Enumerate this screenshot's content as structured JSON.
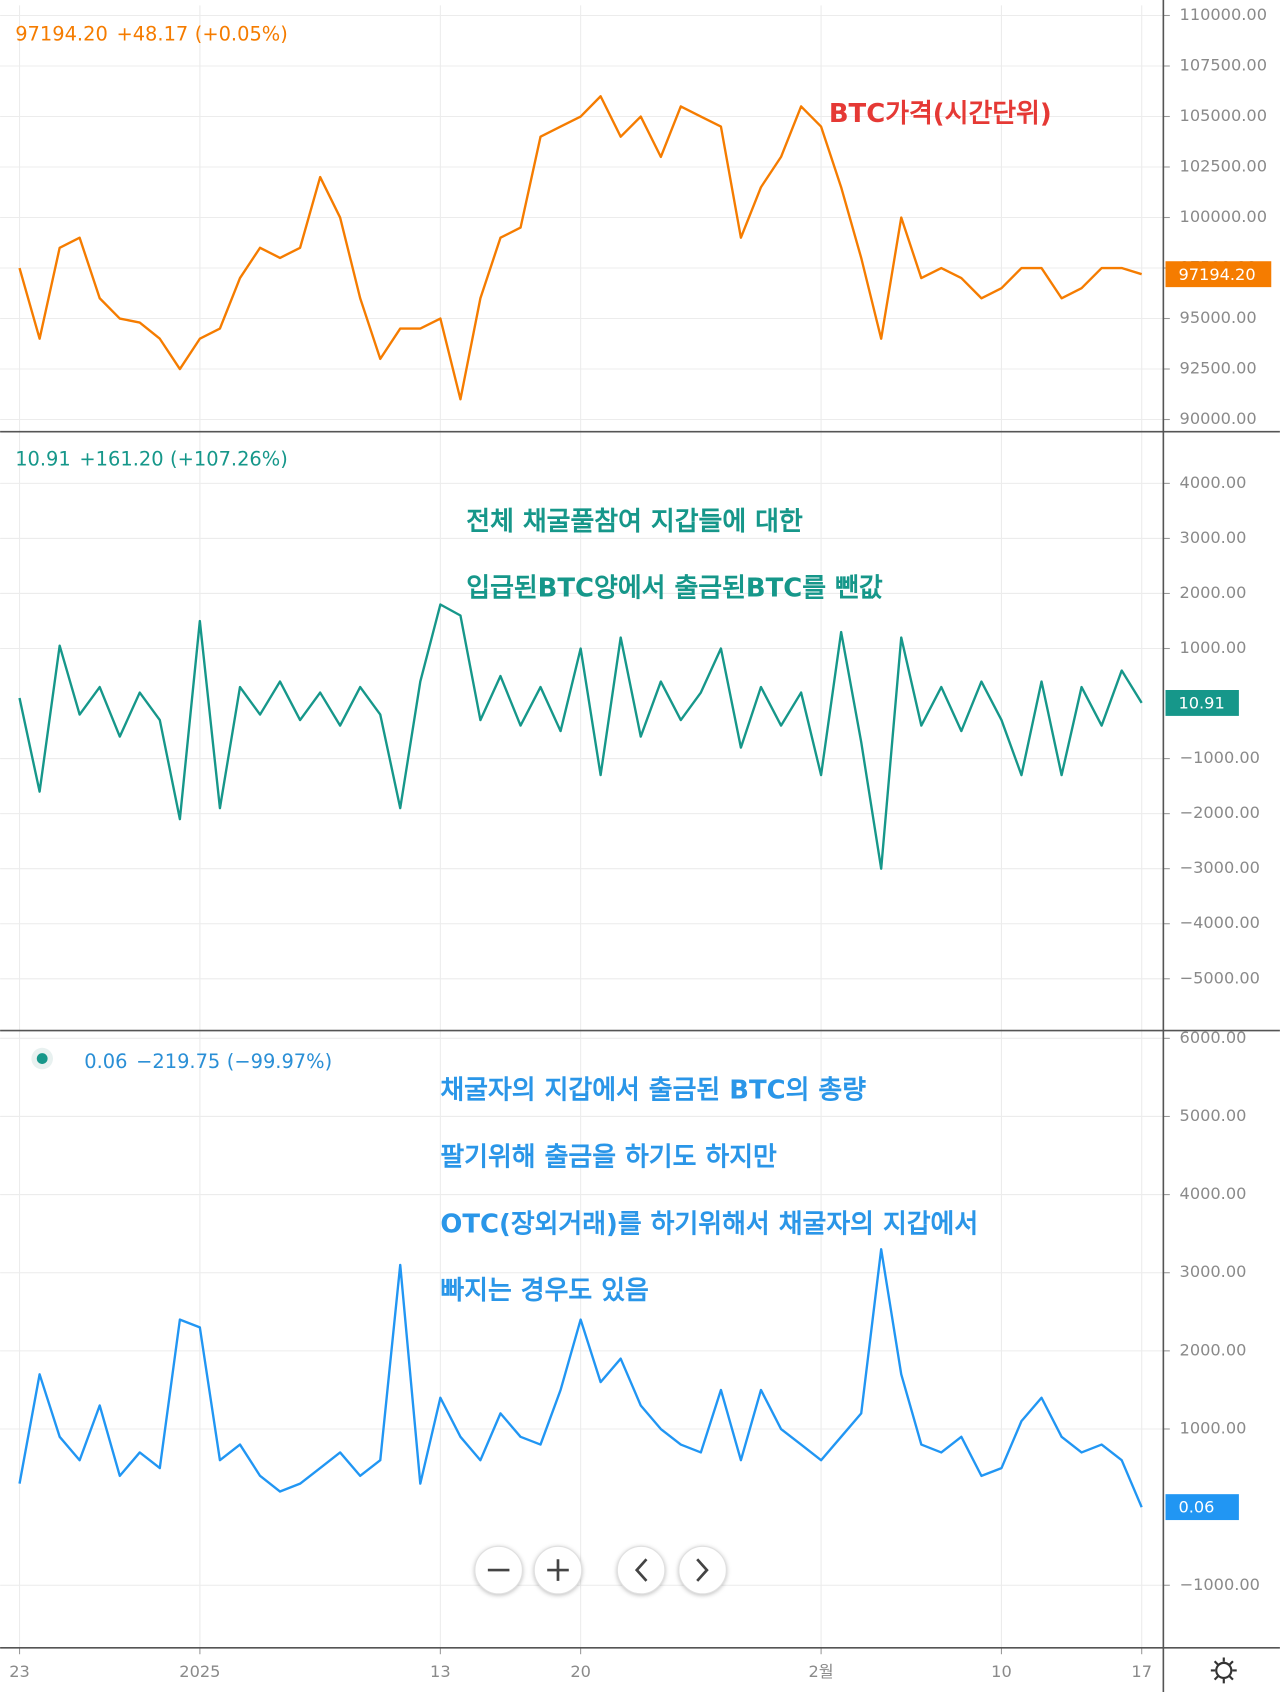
{
  "chart_data": [
    {
      "type": "line",
      "color": "#f57c00",
      "header": {
        "value": "97194.20",
        "change": "+48.17",
        "percent": "(+0.05%)"
      },
      "annotations": [
        "BTC가격(시간단위)"
      ],
      "x": [
        0,
        1,
        2,
        3,
        4,
        5,
        6,
        7,
        8,
        9,
        10,
        11,
        12,
        13,
        14,
        15,
        16,
        17,
        18,
        19,
        20,
        21,
        22,
        23,
        24,
        25,
        26,
        27,
        28,
        29,
        30,
        31,
        32,
        33,
        34,
        35,
        36,
        37,
        38,
        39,
        40,
        41,
        42,
        43,
        44,
        45,
        46,
        47,
        48,
        49,
        50,
        51,
        52,
        53,
        54,
        55,
        56
      ],
      "values": [
        97500,
        94000,
        98500,
        99000,
        96000,
        95000,
        94800,
        94000,
        92500,
        94000,
        94500,
        97000,
        98500,
        98000,
        98500,
        102000,
        100000,
        96000,
        93000,
        94500,
        94500,
        95000,
        91000,
        96000,
        99000,
        99500,
        104000,
        104500,
        105000,
        106000,
        104000,
        105000,
        103000,
        105500,
        105000,
        104500,
        99000,
        101500,
        103000,
        105500,
        104500,
        101500,
        98000,
        94000,
        100000,
        97000,
        97500,
        97000,
        96000,
        96500,
        97500,
        97500,
        96000,
        96500,
        97500,
        97500,
        97194.2
      ],
      "xlim": [
        -0.97,
        57.08
      ],
      "ylim": [
        89400,
        110500
      ],
      "yticks": [
        {
          "value": 90000,
          "label": "90000.00"
        },
        {
          "value": 92500,
          "label": "92500.00"
        },
        {
          "value": 95000,
          "label": "95000.00"
        },
        {
          "value": 97500,
          "label": "97500.00"
        },
        {
          "value": 100000,
          "label": "100000.00"
        },
        {
          "value": 102500,
          "label": "102500.00"
        },
        {
          "value": 105000,
          "label": "105000.00"
        },
        {
          "value": 107500,
          "label": "107500.00"
        },
        {
          "value": 110000,
          "label": "110000.00"
        }
      ]
    },
    {
      "type": "line",
      "color": "#16978a",
      "header": {
        "value": "10.91",
        "change": "+161.20",
        "percent": "(+107.26%)"
      },
      "annotations": [
        "전체 채굴풀참여 지갑들에 대한",
        "입급된BTC양에서 출금된BTC를 뺀값"
      ],
      "x": [
        0,
        1,
        2,
        3,
        4,
        5,
        6,
        7,
        8,
        9,
        10,
        11,
        12,
        13,
        14,
        15,
        16,
        17,
        18,
        19,
        20,
        21,
        22,
        23,
        24,
        25,
        26,
        27,
        28,
        29,
        30,
        31,
        32,
        33,
        34,
        35,
        36,
        37,
        38,
        39,
        40,
        41,
        42,
        43,
        44,
        45,
        46,
        47,
        48,
        49,
        50,
        51,
        52,
        53,
        54,
        55,
        56
      ],
      "values": [
        100,
        -1600,
        1050,
        -200,
        300,
        -600,
        200,
        -300,
        -2100,
        1500,
        -1900,
        300,
        -200,
        400,
        -300,
        200,
        -400,
        300,
        -200,
        -1900,
        400,
        1800,
        1600,
        -300,
        500,
        -400,
        300,
        -500,
        1000,
        -1300,
        1200,
        -600,
        400,
        -300,
        200,
        1000,
        -800,
        300,
        -400,
        200,
        -1300,
        1300,
        -700,
        -3000,
        1200,
        -400,
        300,
        -500,
        400,
        -300,
        -1300,
        400,
        -1300,
        300,
        -400,
        600,
        10.91
      ],
      "xlim": [
        -0.97,
        57.08
      ],
      "ylim": [
        -5940,
        4940
      ],
      "yticks": [
        {
          "value": -5000,
          "label": "−5000.00"
        },
        {
          "value": -4000,
          "label": "−4000.00"
        },
        {
          "value": -3000,
          "label": "−3000.00"
        },
        {
          "value": -2000,
          "label": "−2000.00"
        },
        {
          "value": -1000,
          "label": "−1000.00"
        },
        {
          "value": 1000,
          "label": "1000.00"
        },
        {
          "value": 2000,
          "label": "2000.00"
        },
        {
          "value": 3000,
          "label": "3000.00"
        },
        {
          "value": 4000,
          "label": "4000.00"
        }
      ]
    },
    {
      "type": "line",
      "color": "#2196f3",
      "header": {
        "value": "0.06",
        "change": "−219.75",
        "percent": "(−99.97%)"
      },
      "annotations": [
        "채굴자의 지갑에서 출금된 BTC의 총량",
        "팔기위해 출금을 하기도 하지만",
        "OTC(장외거래)를 하기위해서 채굴자의 지갑에서",
        "빠지는 경우도 있음"
      ],
      "x": [
        0,
        1,
        2,
        3,
        4,
        5,
        6,
        7,
        8,
        9,
        10,
        11,
        12,
        13,
        14,
        15,
        16,
        17,
        18,
        19,
        20,
        21,
        22,
        23,
        24,
        25,
        26,
        27,
        28,
        29,
        30,
        31,
        32,
        33,
        34,
        35,
        36,
        37,
        38,
        39,
        40,
        41,
        42,
        43,
        44,
        45,
        46,
        47,
        48,
        49,
        50,
        51,
        52,
        53,
        54,
        55,
        56
      ],
      "values": [
        300,
        1700,
        900,
        600,
        1300,
        400,
        700,
        500,
        2400,
        2300,
        600,
        800,
        400,
        200,
        300,
        500,
        700,
        400,
        600,
        3100,
        300,
        1400,
        900,
        600,
        1200,
        900,
        800,
        1500,
        2400,
        1600,
        1900,
        1300,
        1000,
        800,
        700,
        1500,
        600,
        1500,
        1000,
        800,
        600,
        900,
        1200,
        3300,
        1700,
        800,
        700,
        900,
        400,
        500,
        1100,
        1400,
        900,
        700,
        800,
        600,
        0.06
      ],
      "xlim": [
        -0.97,
        57.08
      ],
      "ylim": [
        -1800,
        6100
      ],
      "yticks": [
        {
          "value": -1000,
          "label": "−1000.00"
        },
        {
          "value": 1000,
          "label": "1000.00"
        },
        {
          "value": 2000,
          "label": "2000.00"
        },
        {
          "value": 3000,
          "label": "3000.00"
        },
        {
          "value": 4000,
          "label": "4000.00"
        },
        {
          "value": 5000,
          "label": "5000.00"
        },
        {
          "value": 6000,
          "label": "6000.00"
        }
      ],
      "xticks": [
        {
          "value": 0,
          "label": "23"
        },
        {
          "value": 9,
          "label": "2025"
        },
        {
          "value": 21,
          "label": "13"
        },
        {
          "value": 28,
          "label": "20"
        },
        {
          "value": 40,
          "label": "2월"
        },
        {
          "value": 49,
          "label": "10"
        },
        {
          "value": 56,
          "label": "17"
        }
      ]
    }
  ]
}
